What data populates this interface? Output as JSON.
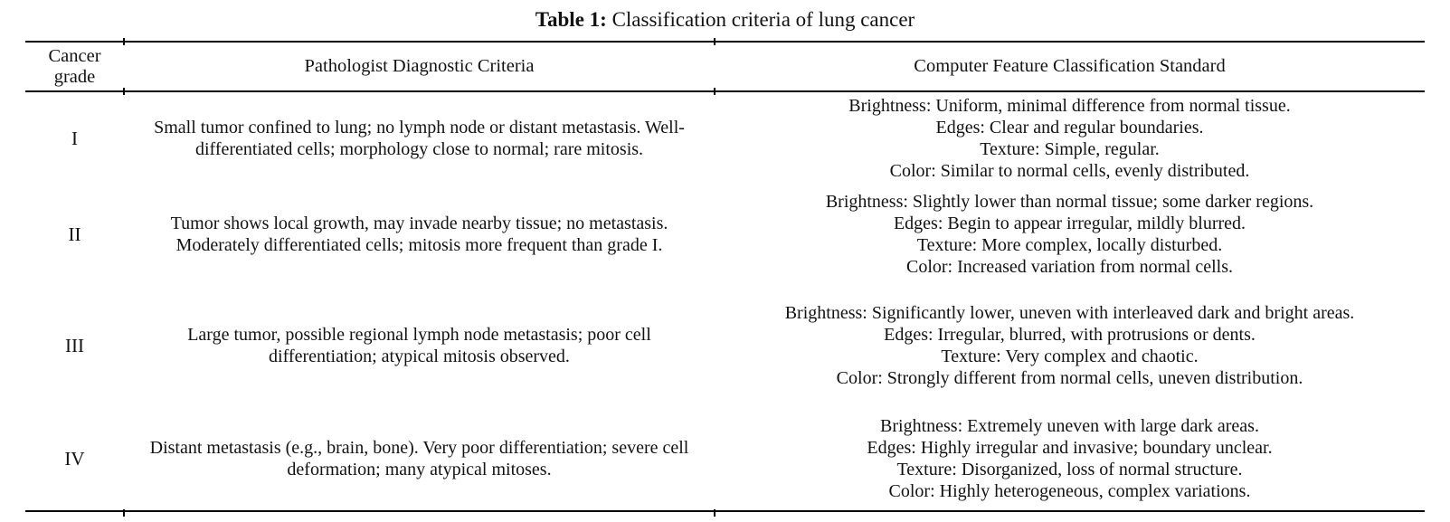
{
  "colors": {
    "background": "#ffffff",
    "text": "#121212",
    "rule": "#000000"
  },
  "table": {
    "title_label": "Table 1:",
    "title_rest": " Classification criteria of lung cancer",
    "header": {
      "grade": "Cancer grade",
      "pathologist": "Pathologist Diagnostic Criteria",
      "computer": "Computer Feature Classification Standard"
    },
    "rows": [
      {
        "grade": "I",
        "pathologist": "Small tumor confined to lung; no lymph node or distant metastasis. Well-differentiated cells; morphology close to normal; rare mitosis.",
        "computer": [
          "Brightness: Uniform, minimal difference from normal tissue.",
          "Edges: Clear and regular boundaries.",
          "Texture: Simple, regular.",
          "Color: Similar to normal cells, evenly distributed."
        ]
      },
      {
        "grade": "II",
        "pathologist": "Tumor shows local growth, may invade nearby tissue; no metastasis. Moderately differentiated cells; mitosis more frequent than grade I.",
        "computer": [
          "Brightness: Slightly lower than normal tissue; some darker regions.",
          "Edges: Begin to appear irregular, mildly blurred.",
          "Texture: More complex, locally disturbed.",
          "Color: Increased variation from normal cells."
        ]
      },
      {
        "grade": "III",
        "pathologist": "Large tumor, possible regional lymph node metastasis; poor cell differentiation; atypical mitosis observed.",
        "computer": [
          "Brightness: Significantly lower, uneven with interleaved dark and bright areas.",
          "Edges: Irregular, blurred, with protrusions or dents.",
          "Texture: Very complex and chaotic.",
          "Color: Strongly different from normal cells, uneven distribution."
        ]
      },
      {
        "grade": "IV",
        "pathologist": "Distant metastasis (e.g., brain, bone). Very poor differentiation; severe cell deformation; many atypical mitoses.",
        "computer": [
          "Brightness: Extremely uneven with large dark areas.",
          "Edges: Highly irregular and invasive; boundary unclear.",
          "Texture: Disorganized, loss of normal structure.",
          "Color: Highly heterogeneous, complex variations."
        ]
      }
    ]
  }
}
